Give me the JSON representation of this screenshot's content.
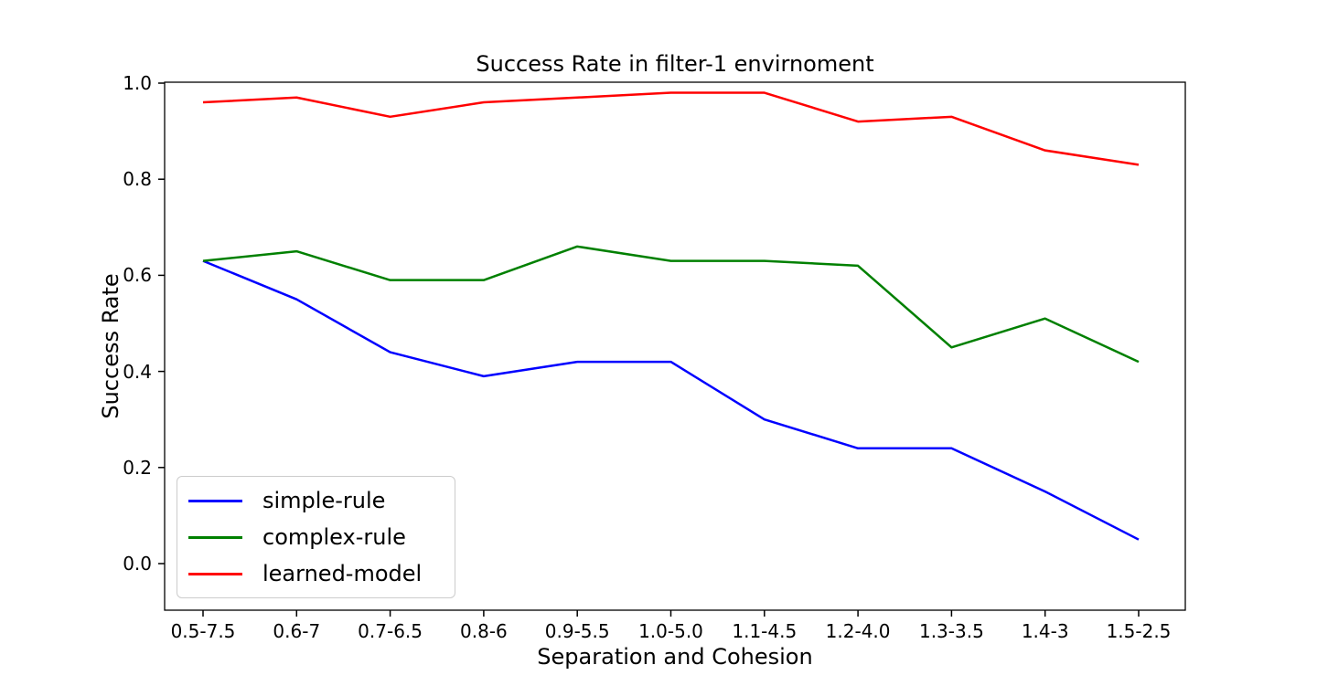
{
  "chart_data": {
    "type": "line",
    "title": "Success Rate in filter-1 envirnoment",
    "xlabel": "Separation and Cohesion",
    "ylabel": "Success Rate",
    "categories": [
      "0.5-7.5",
      "0.6-7",
      "0.7-6.5",
      "0.8-6",
      "0.9-5.5",
      "1.0-5.0",
      "1.1-4.5",
      "1.2-4.0",
      "1.3-3.5",
      "1.4-3",
      "1.5-2.5"
    ],
    "series": [
      {
        "name": "simple-rule",
        "color": "#0000ff",
        "values": [
          0.63,
          0.55,
          0.44,
          0.39,
          0.42,
          0.42,
          0.3,
          0.24,
          0.24,
          0.15,
          0.05
        ]
      },
      {
        "name": "complex-rule",
        "color": "#008000",
        "values": [
          0.63,
          0.65,
          0.59,
          0.59,
          0.66,
          0.63,
          0.63,
          0.62,
          0.45,
          0.51,
          0.42
        ]
      },
      {
        "name": "learned-model",
        "color": "#ff0000",
        "values": [
          0.96,
          0.97,
          0.93,
          0.96,
          0.97,
          0.98,
          0.98,
          0.92,
          0.93,
          0.86,
          0.83
        ]
      }
    ],
    "yticks": {
      "values": [
        0.0,
        0.2,
        0.4,
        0.6,
        0.8,
        1.0
      ],
      "labels": [
        "0.0",
        "0.2",
        "0.4",
        "0.6",
        "0.8",
        "1.0"
      ]
    },
    "ylim": [
      -0.1,
      1.0
    ],
    "grid": false,
    "legend_position": "lower-left"
  }
}
